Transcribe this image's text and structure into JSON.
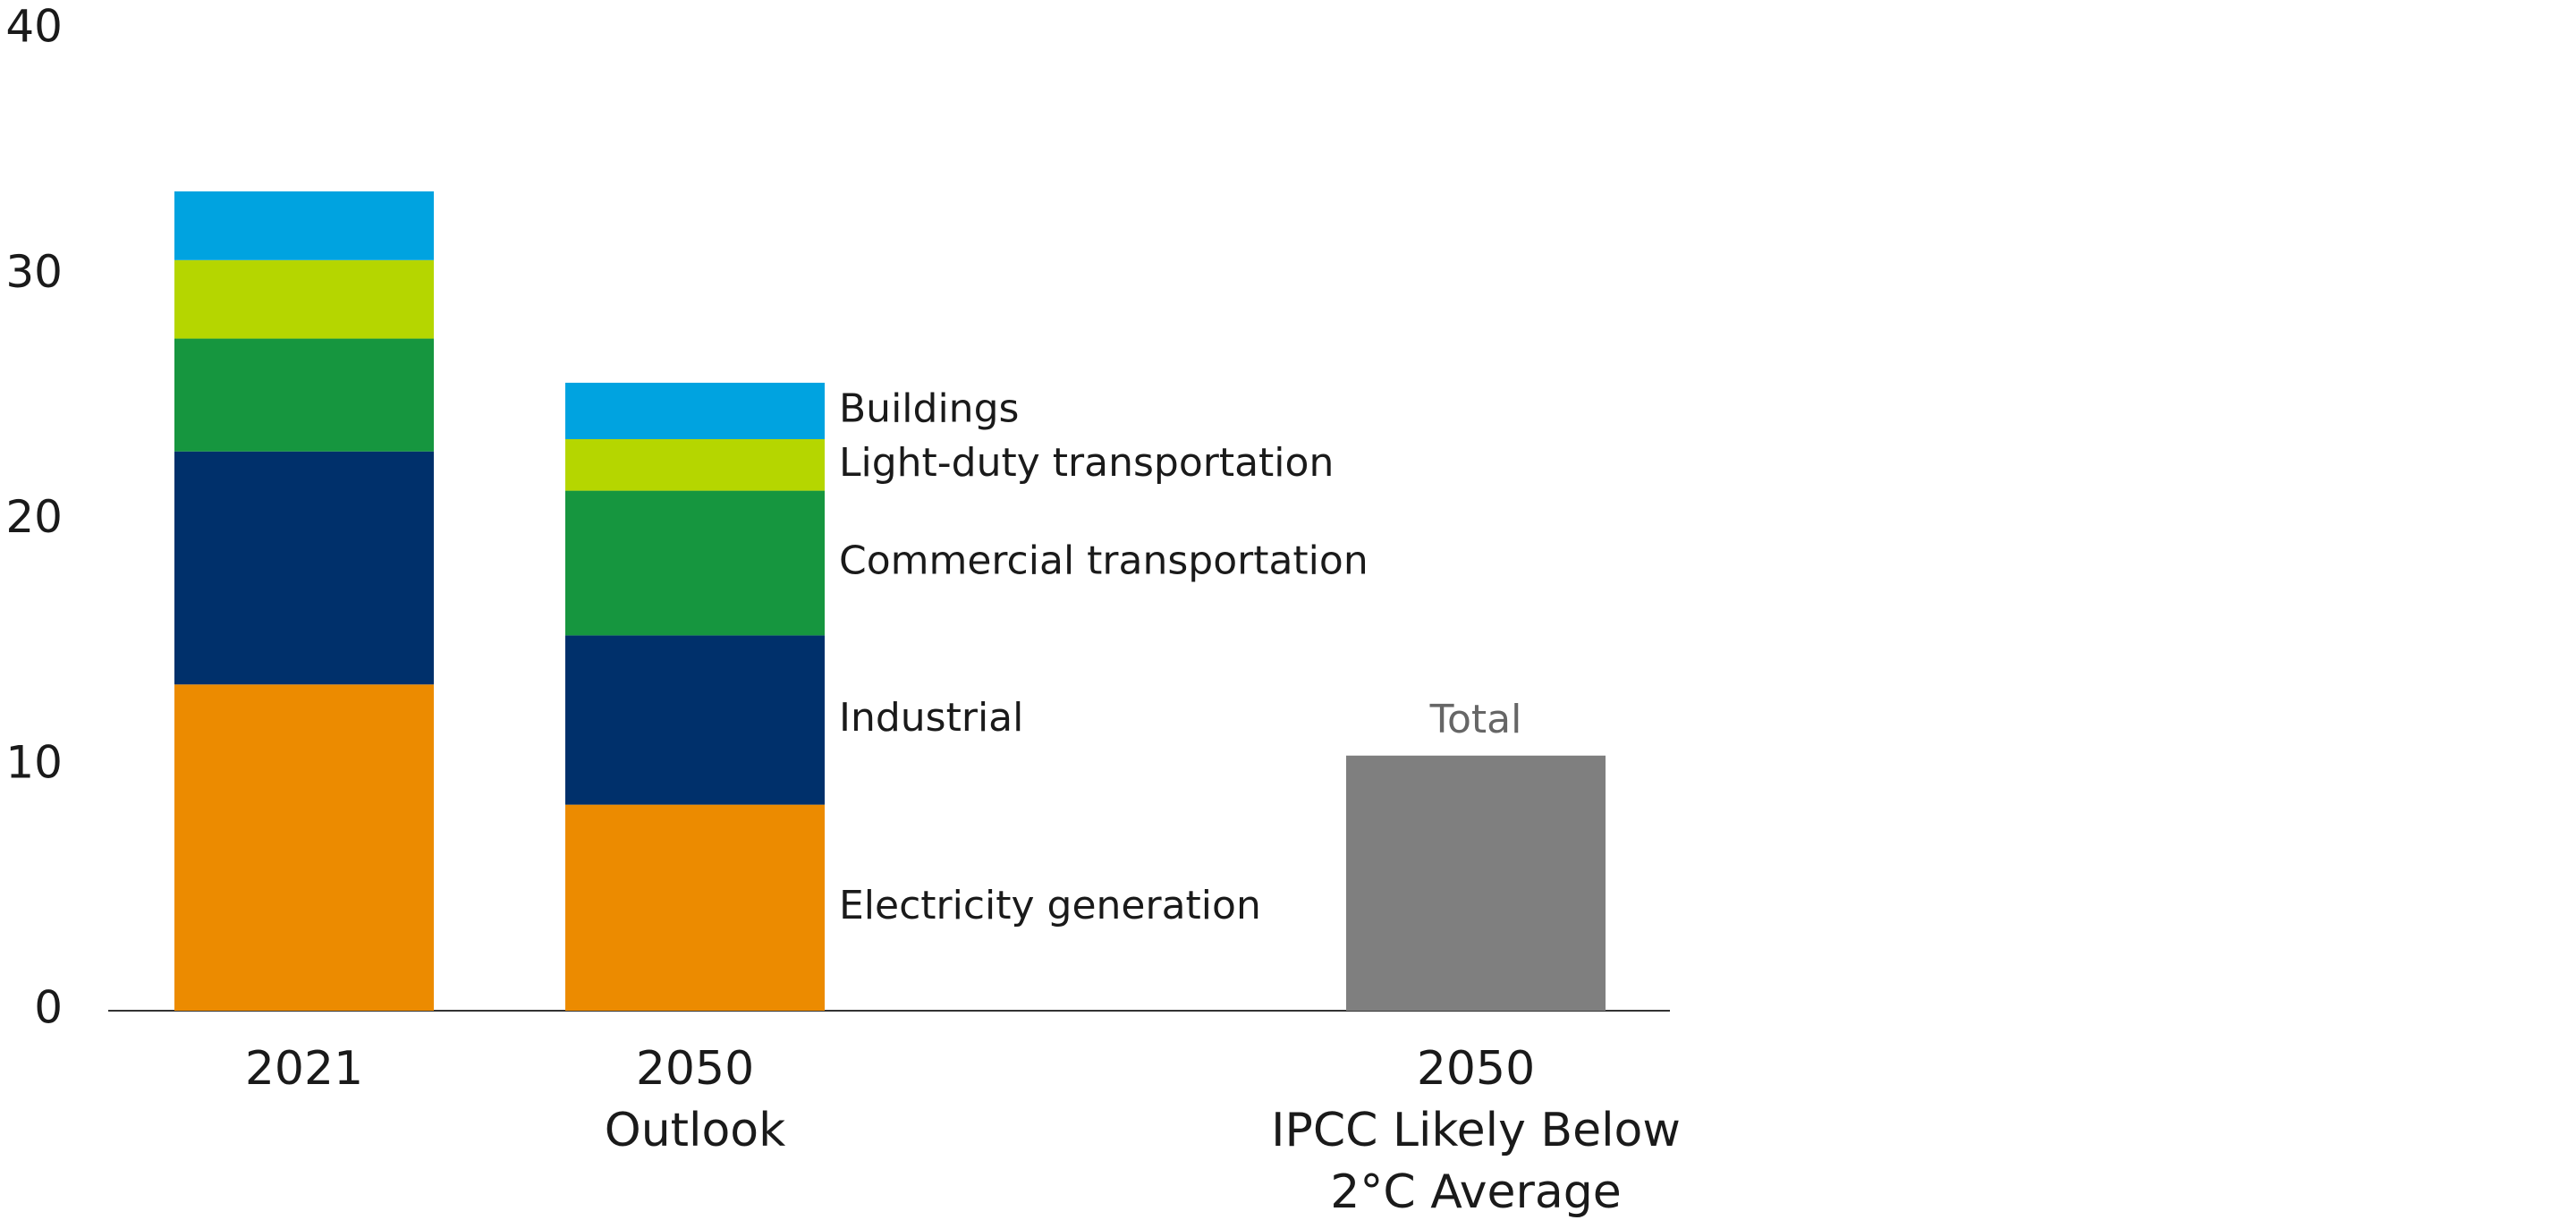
{
  "chart_data": {
    "type": "stacked_bar",
    "categories": [
      [
        "2021"
      ],
      [
        "2050",
        "Outlook"
      ],
      [
        "2050",
        "IPCC Likely Below",
        "2°C Average"
      ]
    ],
    "series": [
      {
        "name": "Electricity generation",
        "color": "#ec8b00",
        "values": [
          13.3,
          8.4,
          null
        ]
      },
      {
        "name": "Industrial",
        "color": "#00306b",
        "values": [
          9.5,
          6.9,
          null
        ]
      },
      {
        "name": "Commercial transportation",
        "color": "#16963f",
        "values": [
          4.6,
          5.9,
          null
        ]
      },
      {
        "name": "Light-duty transportation",
        "color": "#b5d600",
        "values": [
          3.2,
          2.1,
          null
        ]
      },
      {
        "name": "Buildings",
        "color": "#00a3e0",
        "values": [
          2.8,
          2.3,
          null
        ]
      },
      {
        "name": "Total",
        "color": "#7f7f7f",
        "values": [
          null,
          null,
          10.4
        ]
      }
    ],
    "ylim": [
      0,
      40
    ],
    "yticks": [
      0,
      10,
      20,
      30,
      40
    ],
    "grid": false
  }
}
